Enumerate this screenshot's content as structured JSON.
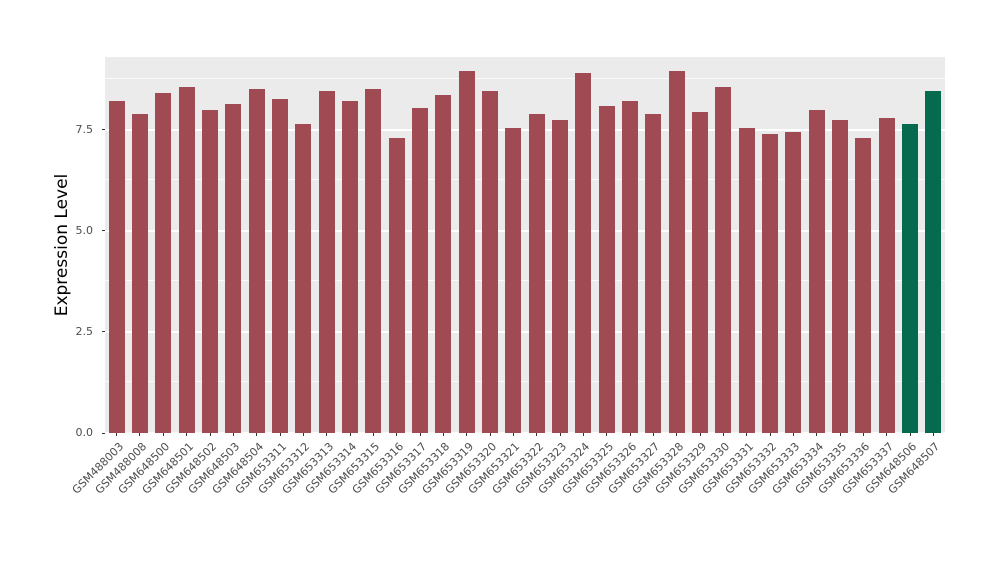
{
  "chart_data": {
    "type": "bar",
    "title": "",
    "xlabel": "",
    "ylabel": "Expression Level",
    "legend": "none",
    "grid": "on",
    "panel_background": "#EBEBEB",
    "grid_color": "#FFFFFF",
    "axis_text_color": "#4D4D4D",
    "bar_default_color": "#A04A54",
    "bar_highlight_color": "#066B4E",
    "highlight_categories": [
      "GSM648506",
      "GSM648507"
    ],
    "ylim": [
      0,
      9.3
    ],
    "ytick_values": [
      0,
      2.5,
      5.0,
      7.5
    ],
    "ytick_labels": [
      "0.0",
      "2.5",
      "5.0",
      "7.5"
    ],
    "minor_gridlines": [
      1.25,
      3.75,
      6.25,
      8.75
    ],
    "categories": [
      "GSM488003",
      "GSM488008",
      "GSM648500",
      "GSM648501",
      "GSM648502",
      "GSM648503",
      "GSM648504",
      "GSM653311",
      "GSM653312",
      "GSM653313",
      "GSM653314",
      "GSM653315",
      "GSM653316",
      "GSM653317",
      "GSM653318",
      "GSM653319",
      "GSM653320",
      "GSM653321",
      "GSM653322",
      "GSM653323",
      "GSM653324",
      "GSM653325",
      "GSM653326",
      "GSM653327",
      "GSM653328",
      "GSM653329",
      "GSM653330",
      "GSM653331",
      "GSM653332",
      "GSM653333",
      "GSM653334",
      "GSM653335",
      "GSM653336",
      "GSM653337",
      "GSM648506",
      "GSM648507"
    ],
    "values": [
      8.2,
      7.9,
      8.4,
      8.55,
      8.0,
      8.15,
      8.5,
      8.25,
      7.65,
      8.45,
      8.2,
      8.5,
      7.3,
      8.05,
      8.35,
      8.95,
      8.45,
      7.55,
      7.9,
      7.75,
      8.9,
      8.1,
      8.2,
      7.9,
      8.95,
      7.95,
      8.55,
      7.55,
      7.4,
      7.45,
      8.0,
      7.75,
      7.3,
      7.8,
      7.65,
      8.45
    ]
  }
}
